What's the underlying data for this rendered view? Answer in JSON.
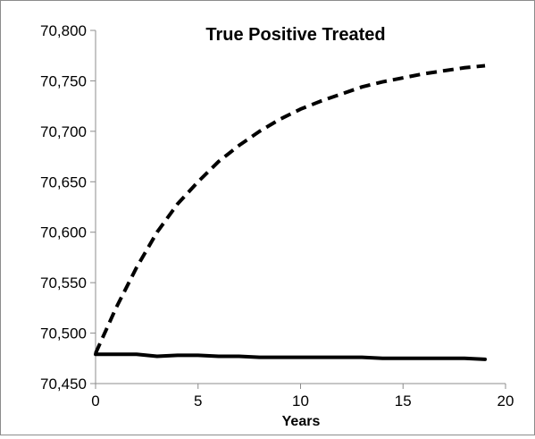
{
  "chart_data": {
    "type": "line",
    "title": "True Positive Treated",
    "xlabel": "Years",
    "ylabel": "",
    "xlim": [
      0,
      20
    ],
    "ylim": [
      70450,
      70800
    ],
    "x_ticks": [
      0,
      5,
      10,
      15,
      20
    ],
    "y_ticks": [
      70450,
      70500,
      70550,
      70600,
      70650,
      70700,
      70750,
      70800
    ],
    "x_tick_labels": [
      "0",
      "5",
      "10",
      "15",
      "20"
    ],
    "y_tick_labels": [
      "70,450",
      "70,500",
      "70,550",
      "70,600",
      "70,650",
      "70,700",
      "70,750",
      "70,800"
    ],
    "grid": false,
    "legend": "none",
    "series": [
      {
        "style": "dashed",
        "color": "#000000",
        "x": [
          0,
          1,
          2,
          3,
          4,
          5,
          6,
          7,
          8,
          9,
          10,
          11,
          12,
          13,
          14,
          15,
          16,
          17,
          18,
          19
        ],
        "values": [
          70480,
          70525,
          70565,
          70600,
          70628,
          70650,
          70670,
          70686,
          70700,
          70712,
          70722,
          70730,
          70737,
          70744,
          70749,
          70753,
          70757,
          70760,
          70763,
          70765
        ]
      },
      {
        "style": "solid",
        "color": "#000000",
        "x": [
          0,
          1,
          2,
          3,
          4,
          5,
          6,
          7,
          8,
          9,
          10,
          11,
          12,
          13,
          14,
          15,
          16,
          17,
          18,
          19
        ],
        "values": [
          70479,
          70479,
          70479,
          70477,
          70478,
          70478,
          70477,
          70477,
          70476,
          70476,
          70476,
          70476,
          70476,
          70476,
          70475,
          70475,
          70475,
          70475,
          70475,
          70474
        ]
      }
    ]
  }
}
